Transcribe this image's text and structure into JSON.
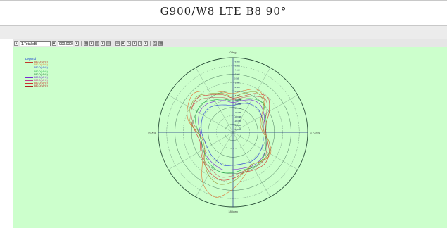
{
  "page": {
    "title": "G900/W8 LTE B8  90°"
  },
  "toolbar": {
    "selector_value": "1.Total dB",
    "frequency_value": "900.000000"
  },
  "chart_data": {
    "type": "polar-line",
    "title": "G900/W8 LTE B8  90°",
    "angle_labels": {
      "top": "0deg",
      "right": "270deg",
      "bottom": "180deg",
      "left": "90deg"
    },
    "angle_direction": "counter-clockwise",
    "radial_unit": "dB",
    "radial_ticks": [
      "-8.0dB",
      "-6.0dB",
      "-4.0dB",
      "-2.0dB",
      "0.0dB",
      "-2.0dB",
      "-4.0dB",
      "-6.0dB",
      "-8.0dB",
      "-10.0dB",
      "-12.0dB",
      "-14.0dB",
      "-16.0dB",
      "-18.0dB",
      "-20.0dB",
      "-22.0dB",
      "-24.0dB"
    ],
    "grid": true,
    "legend": {
      "title": "Legend",
      "placement": "top-left",
      "entries": [
        {
          "name": "880.0(MHz)",
          "color": "#c0392b"
        },
        {
          "name": "880.0(MHz)",
          "color": "#e87f2f"
        },
        {
          "name": "880.0(MHz)",
          "color": "#2a3fd8"
        },
        {
          "name": "880.0(MHz)",
          "color": "#27b34a"
        },
        {
          "name": "880.0(MHz)",
          "color": "#1c7a34"
        },
        {
          "name": "880.0(MHz)",
          "color": "#7a2bd1"
        },
        {
          "name": "880.0(MHz)",
          "color": "#c03a88"
        },
        {
          "name": "880.0(MHz)",
          "color": "#d0312d"
        },
        {
          "name": "880.0(MHz)",
          "color": "#b02020"
        }
      ]
    },
    "series": [
      {
        "color": "#e07030",
        "r": [
          0.52,
          0.58,
          0.66,
          0.6,
          0.44,
          0.38,
          0.4,
          0.5,
          0.58,
          0.55,
          0.5,
          0.6,
          0.76,
          0.9,
          0.8,
          0.58,
          0.42,
          0.4,
          0.48,
          0.62,
          0.7,
          0.74,
          0.64,
          0.56
        ]
      },
      {
        "color": "#c06060",
        "r": [
          0.44,
          0.48,
          0.56,
          0.62,
          0.52,
          0.42,
          0.42,
          0.46,
          0.52,
          0.56,
          0.54,
          0.54,
          0.58,
          0.62,
          0.58,
          0.54,
          0.48,
          0.44,
          0.46,
          0.56,
          0.64,
          0.62,
          0.54,
          0.48
        ]
      },
      {
        "color": "#7a2bd1",
        "r": [
          0.4,
          0.44,
          0.5,
          0.52,
          0.48,
          0.44,
          0.44,
          0.46,
          0.5,
          0.52,
          0.52,
          0.5,
          0.5,
          0.52,
          0.5,
          0.48,
          0.46,
          0.44,
          0.44,
          0.48,
          0.52,
          0.52,
          0.48,
          0.44
        ]
      },
      {
        "color": "#2a3fd8",
        "r": [
          0.36,
          0.4,
          0.44,
          0.46,
          0.44,
          0.42,
          0.4,
          0.42,
          0.44,
          0.46,
          0.46,
          0.44,
          0.44,
          0.46,
          0.44,
          0.42,
          0.4,
          0.4,
          0.42,
          0.44,
          0.46,
          0.46,
          0.42,
          0.38
        ]
      },
      {
        "color": "#27b34a",
        "r": [
          0.42,
          0.46,
          0.52,
          0.56,
          0.5,
          0.46,
          0.44,
          0.46,
          0.5,
          0.54,
          0.54,
          0.52,
          0.54,
          0.56,
          0.54,
          0.5,
          0.46,
          0.44,
          0.46,
          0.52,
          0.56,
          0.56,
          0.5,
          0.46
        ]
      },
      {
        "color": "#d0312d",
        "r": [
          0.46,
          0.5,
          0.6,
          0.66,
          0.56,
          0.46,
          0.44,
          0.48,
          0.56,
          0.6,
          0.58,
          0.56,
          0.62,
          0.66,
          0.62,
          0.56,
          0.5,
          0.46,
          0.5,
          0.58,
          0.64,
          0.66,
          0.58,
          0.52
        ]
      },
      {
        "color": "#9a9a3a",
        "r": [
          0.48,
          0.54,
          0.62,
          0.58,
          0.46,
          0.4,
          0.42,
          0.5,
          0.56,
          0.54,
          0.5,
          0.56,
          0.66,
          0.72,
          0.66,
          0.54,
          0.44,
          0.42,
          0.48,
          0.6,
          0.66,
          0.68,
          0.6,
          0.54
        ]
      }
    ]
  }
}
